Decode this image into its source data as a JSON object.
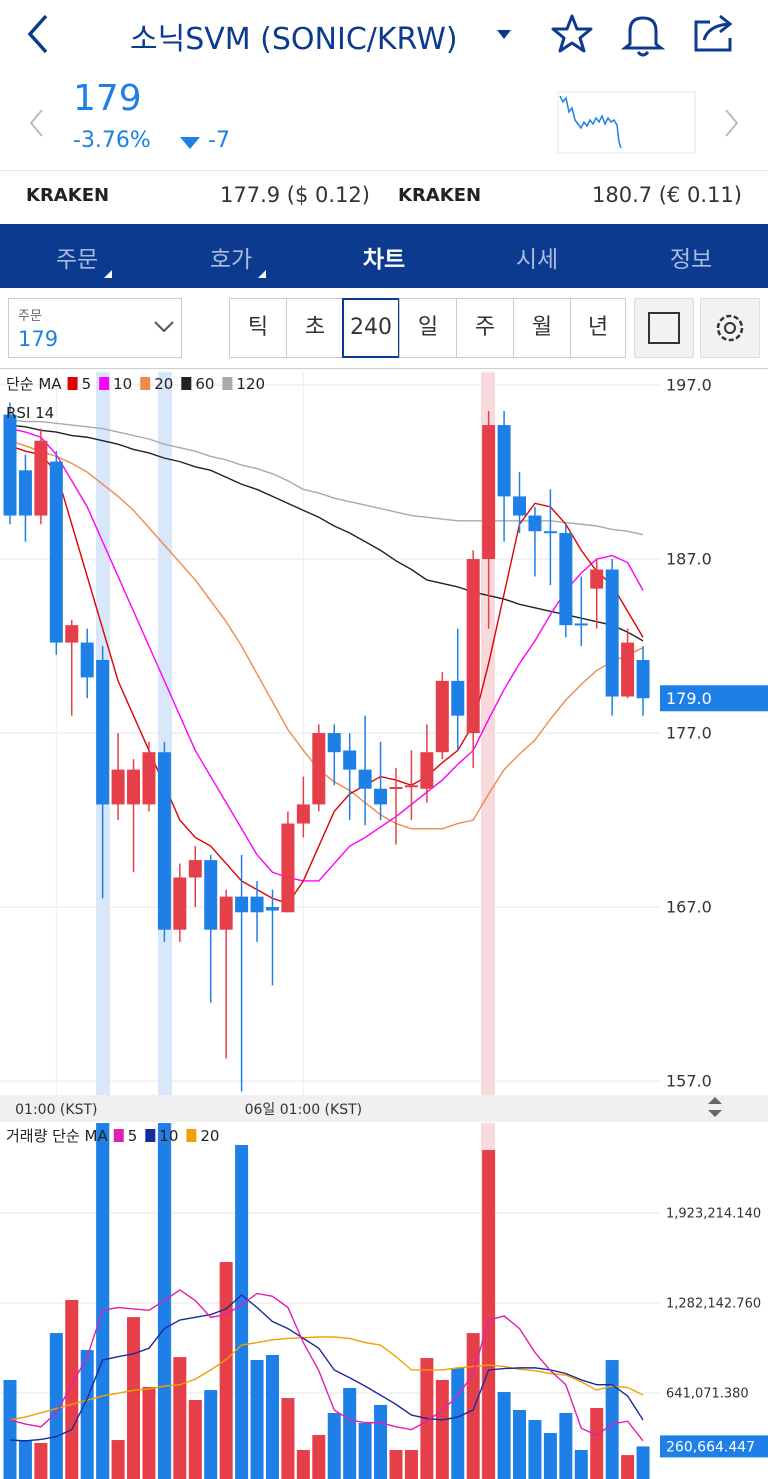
{
  "header": {
    "title": "소닉SVM (SONIC/KRW)"
  },
  "quote": {
    "price": 179,
    "change_pct": "-3.76%",
    "change": -7
  },
  "exchanges": [
    {
      "name": "KRAKEN",
      "quote": "177.9 ($ 0.12)"
    },
    {
      "name": "KRAKEN",
      "quote": "180.7 (€ 0.11)"
    }
  ],
  "tabs": [
    "주문",
    "호가",
    "차트",
    "시세",
    "정보"
  ],
  "toolbar": {
    "select_label": "주문",
    "select_value": 179,
    "intervals": [
      "틱",
      "초",
      "240",
      "일",
      "주",
      "월",
      "년"
    ]
  },
  "chart_data": [
    {
      "type": "candlestick",
      "legend_title": "단순 MA",
      "indicator": "RSI 14",
      "up_color": "#e5404a",
      "down_color": "#1e80e6",
      "categories": [
        null,
        null,
        null,
        "01:00 (KST)",
        null,
        null,
        null,
        null,
        null,
        null,
        null,
        null,
        null,
        null,
        null,
        null,
        null,
        null,
        null,
        "06일 01:00 (KST)",
        null,
        null,
        null,
        null,
        null,
        null,
        null,
        null,
        null,
        null,
        null,
        null,
        null,
        null,
        null,
        null,
        null,
        null,
        null,
        null,
        null,
        null
      ],
      "open": [
        195.3,
        192.1,
        189.5,
        192.6,
        182.2,
        182.2,
        181.2,
        172.9,
        172.9,
        172.9,
        175.9,
        165.7,
        168.7,
        169.7,
        165.7,
        167.6,
        167.6,
        167.0,
        166.7,
        171.8,
        172.9,
        177.0,
        176.0,
        174.9,
        173.8,
        173.8,
        173.9,
        173.8,
        175.9,
        180.0,
        177.0,
        187.0,
        194.7,
        190.6,
        189.5,
        188.6,
        188.5,
        183.3,
        185.3,
        186.4,
        179.1,
        181.2
      ],
      "high": [
        196.0,
        193.0,
        194.5,
        193.2,
        183.5,
        183.0,
        182.0,
        177.0,
        175.5,
        176.5,
        176.5,
        169.5,
        170.5,
        170.0,
        168.0,
        170.0,
        168.5,
        168.0,
        172.5,
        174.5,
        177.5,
        177.5,
        177.0,
        178.0,
        176.5,
        175.0,
        176.0,
        177.5,
        180.5,
        183.0,
        187.5,
        195.5,
        195.5,
        192.0,
        190.0,
        191.0,
        189.0,
        186.0,
        187.0,
        187.0,
        183.0,
        182.0
      ],
      "low": [
        189.0,
        188.0,
        189.0,
        181.5,
        178.0,
        179.0,
        167.5,
        172.0,
        169.0,
        172.5,
        165.0,
        165.0,
        167.0,
        161.5,
        158.3,
        156.4,
        165.0,
        162.5,
        166.7,
        171.0,
        172.5,
        174.0,
        172.0,
        171.7,
        172.0,
        170.6,
        172.0,
        173.0,
        175.5,
        176.0,
        175.0,
        183.0,
        188.0,
        188.5,
        186.0,
        185.5,
        182.5,
        182.0,
        183.0,
        178.0,
        179.0,
        178.0
      ],
      "close": [
        189.5,
        189.5,
        193.8,
        182.2,
        183.2,
        180.2,
        172.9,
        174.9,
        174.9,
        175.9,
        165.7,
        168.7,
        169.7,
        165.7,
        167.6,
        166.7,
        166.7,
        166.8,
        171.8,
        172.9,
        177.0,
        175.9,
        174.9,
        173.8,
        172.9,
        173.9,
        174.0,
        175.9,
        180.0,
        178.0,
        187.0,
        194.7,
        190.6,
        189.5,
        188.6,
        188.5,
        183.2,
        183.2,
        186.4,
        179.1,
        182.2,
        179.0
      ],
      "series": [
        {
          "name": "5",
          "color": "#e00000",
          "values": [
            193.5,
            193.2,
            193,
            192,
            189,
            186,
            183,
            180,
            178,
            176,
            174,
            172,
            171,
            170.5,
            169.5,
            168.5,
            168,
            167.5,
            167.2,
            168.5,
            170.5,
            172.5,
            173.5,
            174,
            174.5,
            174.3,
            174,
            174.5,
            175.3,
            176,
            177.5,
            181,
            185,
            189,
            190.2,
            190,
            189,
            187.5,
            186.3,
            185.5,
            184,
            182.5
          ]
        },
        {
          "name": "10",
          "color": "#ff00ff",
          "values": [
            194.5,
            194.3,
            194,
            193,
            191.5,
            190,
            188,
            186,
            184,
            182,
            180,
            178,
            176,
            174.5,
            173,
            171.5,
            170,
            169,
            168.7,
            168.5,
            168.5,
            169.5,
            170.5,
            171,
            171.6,
            172.2,
            172.9,
            173.6,
            174.3,
            175.2,
            176,
            177.8,
            179.5,
            181,
            182.3,
            183.8,
            185.2,
            186.2,
            187,
            187.2,
            186.8,
            185.2
          ]
        },
        {
          "name": "20",
          "color": "#f08a4b",
          "values": [
            193.8,
            193.5,
            193.2,
            192.9,
            192.5,
            192,
            191.3,
            190.6,
            189.8,
            188.8,
            187.8,
            186.8,
            185.8,
            184.6,
            183.4,
            182,
            180.4,
            178.8,
            177.2,
            176,
            174.9,
            174.2,
            173.7,
            173,
            172.3,
            171.8,
            171.5,
            171.5,
            171.5,
            171.8,
            172,
            173.5,
            174.9,
            175.8,
            176.6,
            177.8,
            178.9,
            179.8,
            180.6,
            181.1,
            181.5,
            181.9
          ]
        },
        {
          "name": "60",
          "color": "#222222",
          "values": [
            194.7,
            194.6,
            194.4,
            194.3,
            194.1,
            194,
            193.8,
            193.6,
            193.3,
            193.1,
            192.8,
            192.6,
            192.3,
            192.1,
            191.7,
            191.3,
            191,
            190.6,
            190.2,
            189.8,
            189.4,
            188.9,
            188.5,
            188,
            187.5,
            186.9,
            186.4,
            185.8,
            185.6,
            185.4,
            185.1,
            184.9,
            184.7,
            184.4,
            184.2,
            184,
            183.8,
            183.6,
            183.4,
            183.2,
            182.8,
            182.3
          ]
        },
        {
          "name": "120",
          "color": "#aaaaaa",
          "values": [
            195,
            194.9,
            194.9,
            194.8,
            194.7,
            194.6,
            194.5,
            194.3,
            194.1,
            193.9,
            193.6,
            193.4,
            193.2,
            192.9,
            192.7,
            192.4,
            192.2,
            191.9,
            191.5,
            191,
            190.8,
            190.5,
            190.3,
            190.1,
            189.9,
            189.7,
            189.5,
            189.4,
            189.3,
            189.2,
            189.2,
            189.2,
            189.2,
            189.2,
            189.2,
            189.2,
            189.1,
            189,
            188.9,
            188.7,
            188.6,
            188.4
          ]
        }
      ],
      "ylim": [
        156.2,
        197.75
      ],
      "yticks": [
        {
          "value": 197,
          "label": "197.0"
        },
        {
          "value": 187,
          "label": "187.0"
        },
        {
          "value": 177,
          "label": "177.0"
        },
        {
          "value": 167,
          "label": "167.0"
        },
        {
          "value": 157,
          "label": "157.0"
        }
      ],
      "current": {
        "value": 179,
        "label": "179.0"
      },
      "grid": true
    },
    {
      "type": "bar",
      "legend_title": "거래량 단순 MA",
      "values": [
        734000,
        306000,
        285000,
        1068000,
        1304000,
        947000,
        2564000,
        306000,
        1182000,
        684000,
        2564000,
        897000,
        591000,
        662000,
        1574000,
        2408000,
        876000,
        912000,
        605000,
        235000,
        342000,
        499000,
        677000,
        427000,
        556000,
        235000,
        235000,
        890000,
        734000,
        819000,
        1068000,
        2372000,
        648000,
        520000,
        449000,
        356000,
        499000,
        235000,
        534000,
        876000,
        199000,
        260664.447
      ],
      "series": [
        {
          "name": "5",
          "color": "#e020b0",
          "values": [
            449000,
            420000,
            400000,
            500000,
            700000,
            900000,
            1230000,
            1250000,
            1240000,
            1230000,
            1300000,
            1375000,
            1300000,
            1180000,
            1200000,
            1270000,
            1350000,
            1330000,
            1250000,
            1000000,
            800000,
            520000,
            450000,
            430000,
            430000,
            400000,
            380000,
            440000,
            520000,
            620000,
            780000,
            1160000,
            1190000,
            1100000,
            930000,
            800000,
            700000,
            390000,
            340000,
            420000,
            440000,
            300000
          ]
        },
        {
          "name": "10",
          "color": "#1a2aa0",
          "values": [
            306000,
            300000,
            310000,
            330000,
            380000,
            600000,
            876000,
            900000,
            920000,
            960000,
            1100000,
            1161000,
            1180000,
            1200000,
            1240000,
            1339000,
            1250000,
            1150000,
            1100000,
            1030000,
            960000,
            805000,
            750000,
            690000,
            626000,
            560000,
            484000,
            460000,
            449000,
            470000,
            520000,
            805000,
            815000,
            820000,
            820000,
            805000,
            780000,
            734000,
            700000,
            700000,
            620000,
            449000
          ]
        },
        {
          "name": "20",
          "color": "#f0a000",
          "values": [
            449000,
            470000,
            500000,
            530000,
            560000,
            590000,
            620000,
            640000,
            660000,
            670000,
            690000,
            700000,
            740000,
            805000,
            880000,
            983000,
            1000000,
            1020000,
            1030000,
            1035000,
            1040000,
            1040000,
            1030000,
            1000000,
            983000,
            900000,
            805000,
            805000,
            805000,
            820000,
            830000,
            840000,
            830000,
            810000,
            800000,
            780000,
            769000,
            720000,
            662000,
            690000,
            680000,
            627000
          ]
        }
      ],
      "ylim": [
        0,
        2564285.52
      ],
      "yticks": [
        {
          "value": 1923214.14,
          "label": "1,923,214.140"
        },
        {
          "value": 1282142.76,
          "label": "1,282,142.760"
        },
        {
          "value": 641071.38,
          "label": "641,071.380"
        }
      ],
      "current": {
        "value": 260664.447,
        "label": "260,664.447"
      },
      "grid": true
    }
  ]
}
